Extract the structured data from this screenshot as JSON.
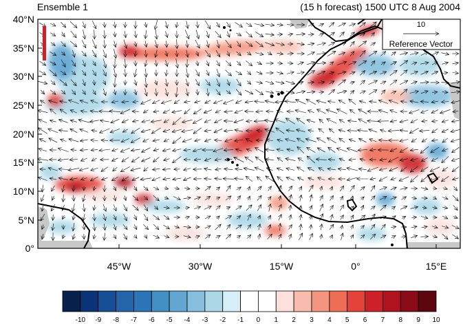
{
  "header": {
    "left_title": "Ensemble 1",
    "right_title": "(15 h forecast) 1500 UTC 8 Aug 2004"
  },
  "reference_vector": {
    "value": "10",
    "label": "Reference Vector"
  },
  "axes": {
    "y_ticks": [
      "40°N",
      "35°N",
      "30°N",
      "25°N",
      "20°N",
      "15°N",
      "10°N",
      "5°N",
      "0°"
    ],
    "x_ticks": [
      "45°W",
      "30°W",
      "15°W",
      "0°",
      "15°E"
    ]
  },
  "colorbar": {
    "labels": [
      "-10",
      "-9",
      "-8",
      "-7",
      "-6",
      "-5",
      "-4",
      "-3",
      "-2",
      "-1",
      "0",
      "1",
      "2",
      "3",
      "4",
      "5",
      "6",
      "7",
      "8",
      "9",
      "10"
    ],
    "colors": [
      "#08204c",
      "#0b3478",
      "#174f96",
      "#2365a8",
      "#2b75b7",
      "#4390c4",
      "#63a6d1",
      "#86bfdd",
      "#abd7e7",
      "#d6eef6",
      "#ffffff",
      "#ffffff",
      "#fce0dc",
      "#f8bcae",
      "#f4957f",
      "#ee6d55",
      "#e3433a",
      "#cc2128",
      "#b0131f",
      "#8a0c18",
      "#5e0610"
    ]
  },
  "chart_data": {
    "type": "map",
    "x_range": [
      -58,
      20
    ],
    "y_range": [
      0,
      40
    ],
    "x_unit": "degrees longitude",
    "y_unit": "degrees latitude"
  }
}
